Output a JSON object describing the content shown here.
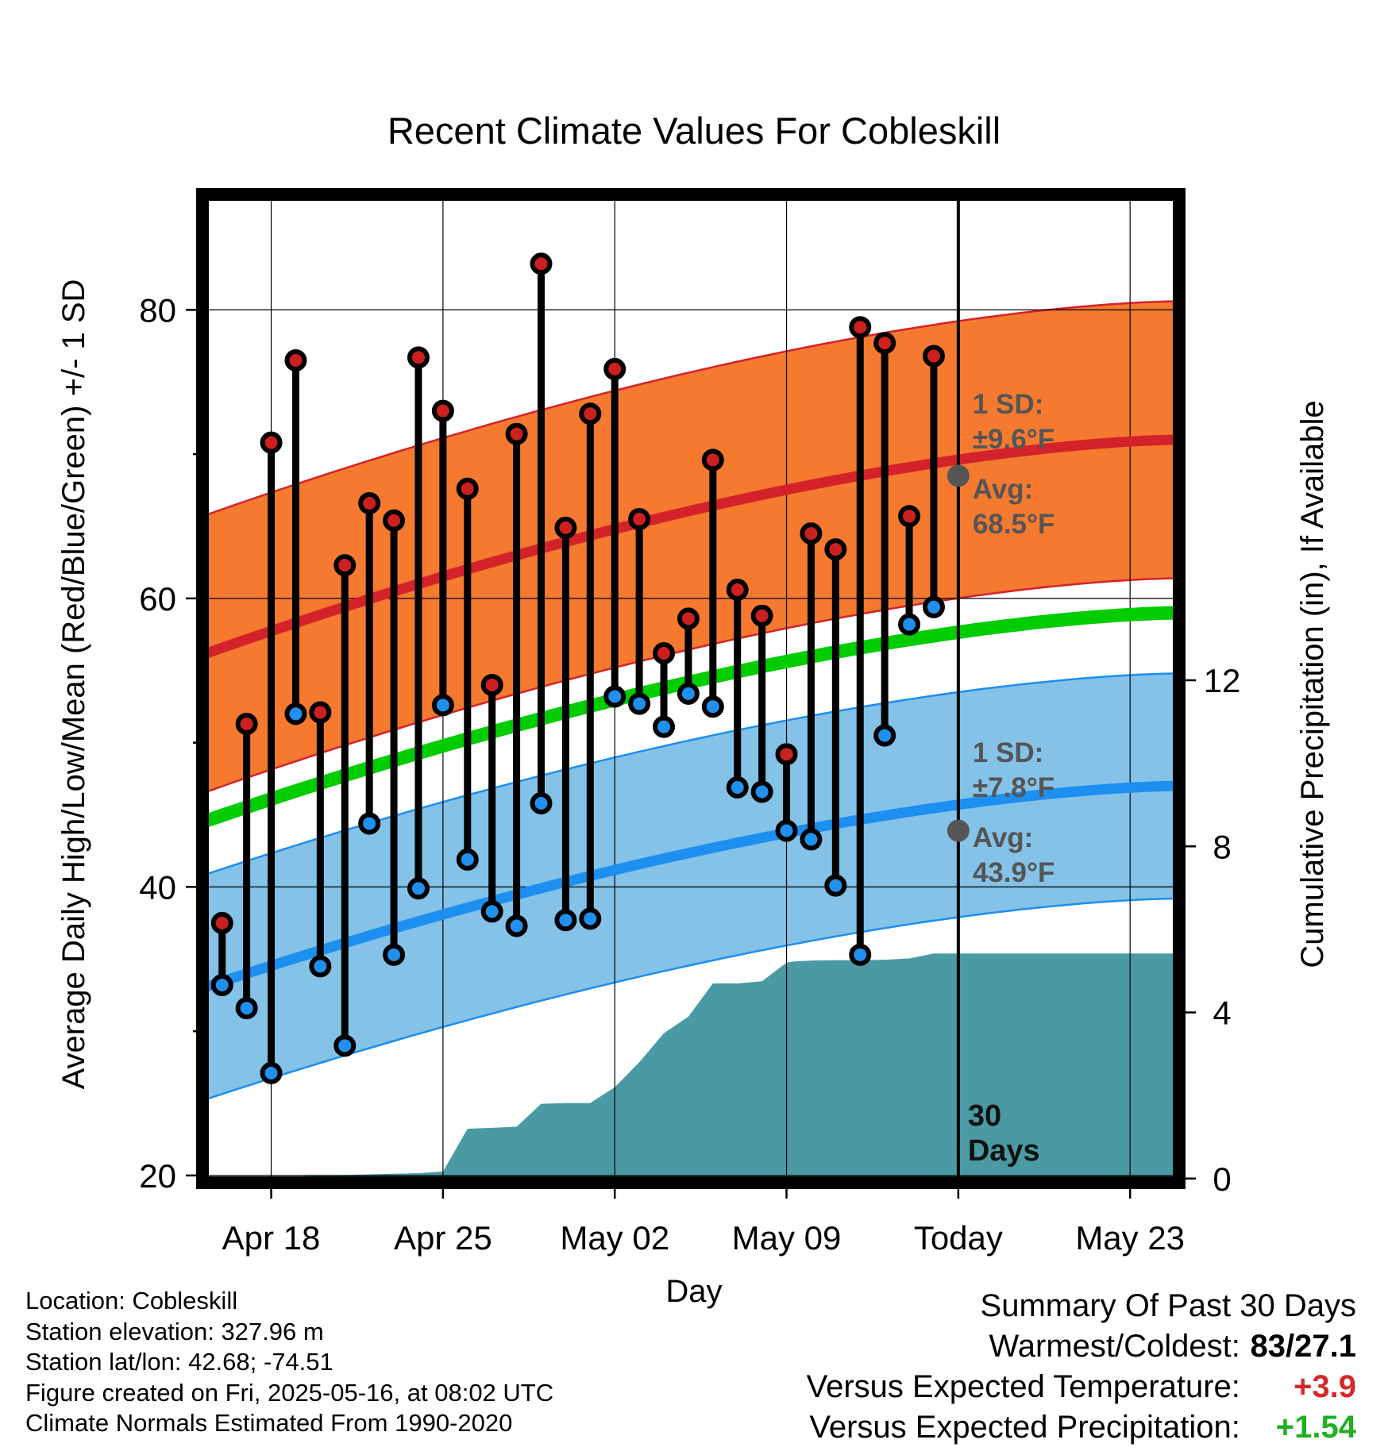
{
  "chart_data": {
    "type": "line",
    "title": "Recent Climate Values For Cobleskill",
    "xlabel": "Day",
    "ylabel": "Average Daily High/Low/Mean (Red/Blue/Green) +/- 1 SD",
    "y2label": "Cumulative Precipitation (in), If Available",
    "x_ticks": [
      "Apr 18",
      "Apr 25",
      "May 02",
      "May 09",
      "Today",
      "May 23"
    ],
    "x_tick_days": [
      2,
      9,
      16,
      23,
      30,
      37
    ],
    "xlim_days": [
      -0.8,
      39
    ],
    "ylim": [
      19.5,
      88
    ],
    "y_ticks": [
      20,
      40,
      60,
      80
    ],
    "y2lim": [
      -0.1,
      23.7
    ],
    "y2_ticks": [
      0,
      4,
      8,
      12
    ],
    "grid": true,
    "today_day": 30,
    "today_label": "30\nDays",
    "normals": {
      "high_avg": [
        56.1,
        71.0
      ],
      "high_sd": 9.6,
      "low_avg": [
        33.0,
        47.0
      ],
      "low_sd": 7.8,
      "mean_avg": [
        44.5,
        59.0
      ]
    },
    "annotations": {
      "high": {
        "sd_label": "1 SD:",
        "sd_value": "±9.6°F",
        "avg_label": "Avg:",
        "avg_value": "68.5°F",
        "avg_point": 68.5
      },
      "low": {
        "sd_label": "1 SD:",
        "sd_value": "±7.8°F",
        "avg_label": "Avg:",
        "avg_value": "43.9°F",
        "avg_point": 43.9
      }
    },
    "series": [
      {
        "name": "High",
        "values": [
          37.5,
          51.3,
          70.8,
          76.5,
          52.1,
          62.3,
          66.6,
          65.4,
          76.7,
          73.0,
          67.6,
          54.0,
          71.4,
          83.2,
          64.9,
          72.8,
          75.9,
          65.5,
          56.2,
          58.6,
          69.6,
          60.6,
          58.8,
          49.2,
          64.5,
          63.4,
          78.8,
          77.7,
          65.7,
          76.8
        ]
      },
      {
        "name": "Low",
        "values": [
          33.2,
          31.6,
          27.1,
          52.0,
          34.5,
          29.0,
          44.4,
          35.3,
          39.9,
          52.6,
          41.9,
          38.3,
          37.3,
          45.8,
          37.7,
          37.8,
          53.2,
          52.7,
          51.1,
          53.4,
          52.5,
          46.9,
          46.6,
          43.9,
          43.3,
          40.1,
          35.3,
          50.5,
          58.2,
          59.4
        ]
      }
    ],
    "precip_days": [
      -0.8,
      0.4,
      2.2,
      3.9,
      6.0,
      8.0,
      9.0,
      10.0,
      11.0,
      12.0,
      13.0,
      14.0,
      15.0,
      16.0,
      17.0,
      18.0,
      19.0,
      20.0,
      21.0,
      22.0,
      23.0,
      23.3,
      24.0,
      25.0,
      26.0,
      27.0,
      28.0,
      29.0,
      30.0,
      31.0,
      32.0,
      33.0,
      34.0,
      35.0,
      36.0,
      37.0,
      38.0,
      39.0
    ],
    "precip_values": [
      0.0,
      0.0,
      0.03,
      0.07,
      0.1,
      0.13,
      0.17,
      1.2,
      1.22,
      1.25,
      1.8,
      1.82,
      1.82,
      2.2,
      2.8,
      3.5,
      3.9,
      4.7,
      4.7,
      4.75,
      5.2,
      5.23,
      5.25,
      5.26,
      5.26,
      5.27,
      5.3,
      5.42,
      5.42,
      5.42,
      5.42,
      5.42,
      5.42,
      5.42,
      5.42,
      5.42,
      5.42,
      5.42
    ]
  },
  "footer": {
    "location": "Location: Cobleskill",
    "elevation": "Station elevation: 327.96 m",
    "latlon": "Station lat/lon: 42.68; -74.51",
    "created": "Figure created on Fri, 2025-05-16, at 08:02 UTC",
    "normals": "Climate Normals Estimated From 1990-2020"
  },
  "summary": {
    "title": "Summary Of Past 30 Days",
    "warmest_label": "Warmest/Coldest:",
    "warmest_value": "83/27.1",
    "temp_label": "Versus Expected Temperature:",
    "temp_value": "+3.9",
    "precip_label": "Versus Expected Precipitation:",
    "precip_value": "+1.54"
  },
  "colors": {
    "high_band": "#f57a2f",
    "high_line": "#d4222a",
    "low_band": "#84c2e8",
    "low_line": "#1c8ff0",
    "mean_line": "#00cc00",
    "precip_fill": "#4a9aa4",
    "high_dot": "#cc2020",
    "low_dot": "#2090ee",
    "annotation": "#555555",
    "temp_anomaly": "#d42a2a",
    "precip_anomaly": "#20b020"
  }
}
